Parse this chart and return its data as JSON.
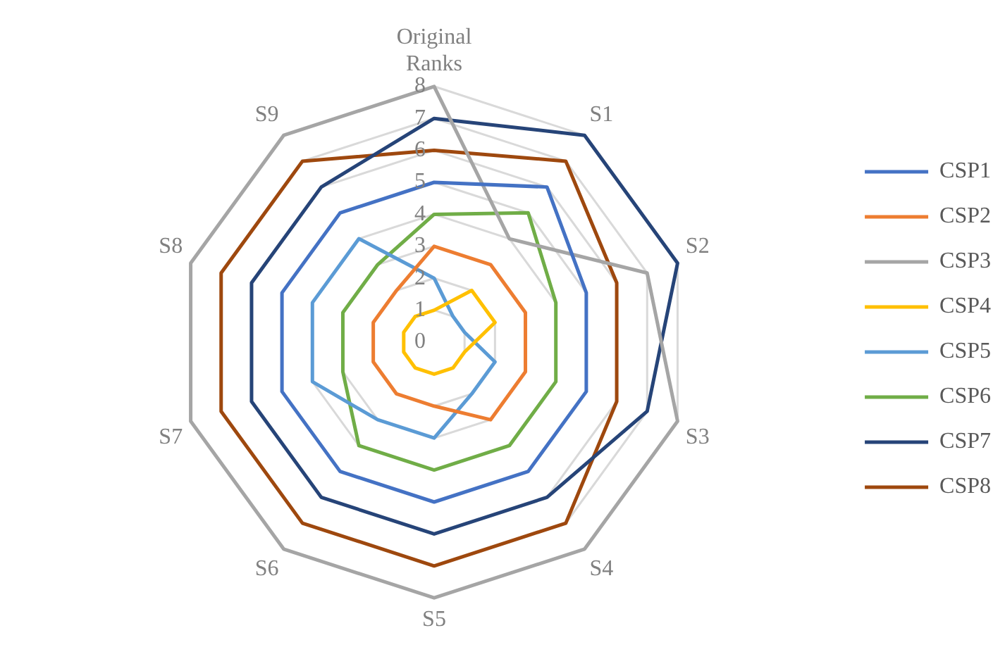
{
  "chart_data": {
    "type": "radar",
    "categories": [
      "Original Ranks",
      "S1",
      "S2",
      "S3",
      "S4",
      "S5",
      "S6",
      "S7",
      "S8",
      "S9"
    ],
    "ylim": [
      0,
      8
    ],
    "yticks": [
      0,
      1,
      2,
      3,
      4,
      5,
      6,
      7,
      8
    ],
    "grid": true,
    "legend": "right",
    "marker": "none",
    "line_style": "solid",
    "series": [
      {
        "name": "CSP1",
        "color": "#4472c4",
        "values": [
          5,
          6,
          5,
          5,
          5,
          5,
          5,
          5,
          5,
          5
        ]
      },
      {
        "name": "CSP2",
        "color": "#ed7d31",
        "values": [
          3,
          3,
          3,
          3,
          3,
          2,
          2,
          2,
          2,
          2
        ]
      },
      {
        "name": "CSP3",
        "color": "#a5a5a5",
        "values": [
          8,
          4,
          7,
          8,
          8,
          8,
          8,
          8,
          8,
          8
        ]
      },
      {
        "name": "CSP4",
        "color": "#ffc000",
        "values": [
          1,
          2,
          2,
          1,
          1,
          1,
          1,
          1,
          1,
          1
        ]
      },
      {
        "name": "CSP5",
        "color": "#5b9bd5",
        "values": [
          2,
          1,
          1,
          2,
          2,
          3,
          3,
          4,
          4,
          4
        ]
      },
      {
        "name": "CSP6",
        "color": "#70ad47",
        "values": [
          4,
          5,
          4,
          4,
          4,
          4,
          4,
          3,
          3,
          3
        ]
      },
      {
        "name": "CSP7",
        "color": "#264478",
        "values": [
          7,
          8,
          8,
          7,
          6,
          6,
          6,
          6,
          6,
          6
        ]
      },
      {
        "name": "CSP8",
        "color": "#9e480e",
        "values": [
          6,
          7,
          6,
          6,
          7,
          7,
          7,
          7,
          7,
          7
        ]
      }
    ]
  }
}
